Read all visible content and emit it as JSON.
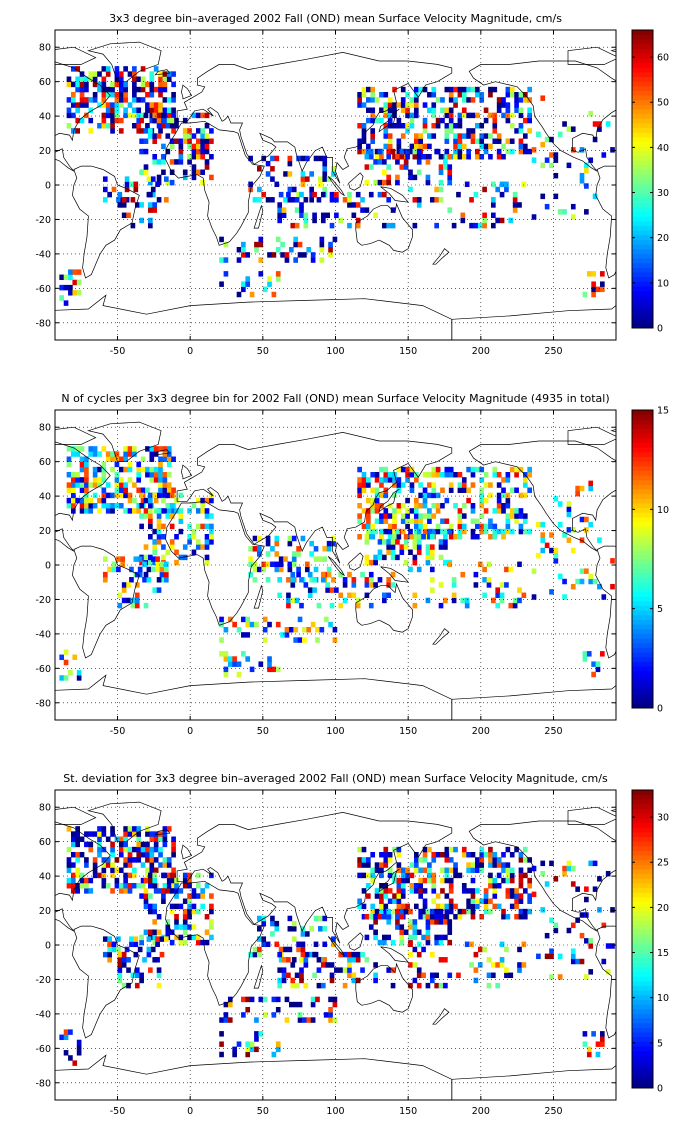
{
  "chart_data": [
    {
      "type": "heatmap",
      "title": "3x3 degree bin–averaged 2002 Fall (OND) mean Surface Velocity Magnitude, cm/s",
      "xlabel": "",
      "ylabel": "",
      "xlim": [
        -93,
        293
      ],
      "ylim": [
        -90,
        90
      ],
      "xticks": [
        -50,
        0,
        50,
        100,
        150,
        200,
        250
      ],
      "yticks": [
        -80,
        -60,
        -40,
        -20,
        0,
        20,
        40,
        60,
        80
      ],
      "grid": true,
      "colorbar": {
        "min": 0,
        "max": 66,
        "ticks": [
          0,
          10,
          20,
          30,
          40,
          50,
          60
        ],
        "colormap": "jet"
      },
      "bin_size_deg": 3
    },
    {
      "type": "heatmap",
      "title": "N of cycles per 3x3 degree bin for 2002 Fall (OND) mean Surface Velocity Magnitude (4935 in total)",
      "xlabel": "",
      "ylabel": "",
      "xlim": [
        -93,
        293
      ],
      "ylim": [
        -90,
        90
      ],
      "xticks": [
        -50,
        0,
        50,
        100,
        150,
        200,
        250
      ],
      "yticks": [
        -80,
        -60,
        -40,
        -20,
        0,
        20,
        40,
        60,
        80
      ],
      "grid": true,
      "colorbar": {
        "min": 0,
        "max": 15,
        "ticks": [
          0,
          5,
          10,
          15
        ],
        "colormap": "jet"
      },
      "bin_size_deg": 3
    },
    {
      "type": "heatmap",
      "title": "St. deviation for 3x3 degree bin–averaged 2002 Fall (OND) mean Surface Velocity Magnitude, cm/s",
      "xlabel": "",
      "ylabel": "",
      "xlim": [
        -93,
        293
      ],
      "ylim": [
        -90,
        90
      ],
      "xticks": [
        -50,
        0,
        50,
        100,
        150,
        200,
        250
      ],
      "yticks": [
        -80,
        -60,
        -40,
        -20,
        0,
        20,
        40,
        60,
        80
      ],
      "grid": true,
      "colorbar": {
        "min": 0,
        "max": 33,
        "ticks": [
          0,
          5,
          10,
          15,
          20,
          25,
          30
        ],
        "colormap": "jet"
      },
      "bin_size_deg": 3
    }
  ]
}
